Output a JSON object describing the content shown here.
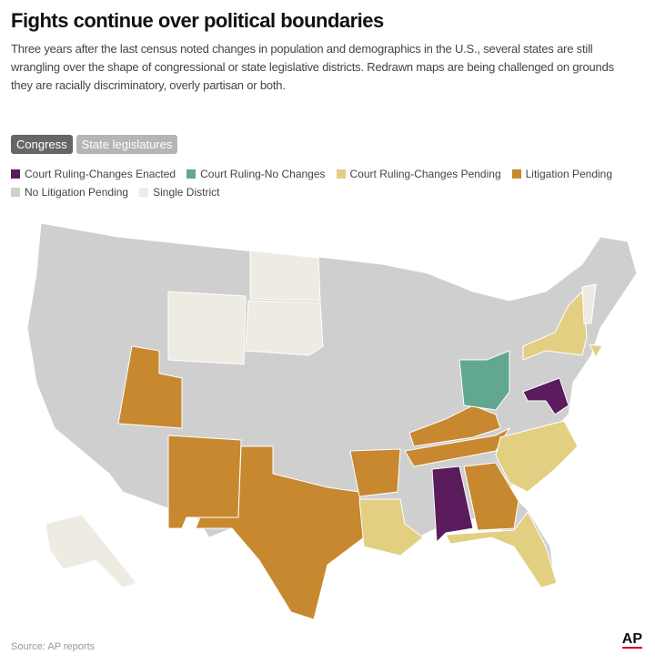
{
  "header": {
    "title": "Fights continue over political boundaries",
    "subtitle": "Three years after the last census noted changes in population and demographics in the U.S., several states are still wrangling over the shape of congressional or state legislative districts. Redrawn maps are being challenged on grounds they are racially discriminatory, overly partisan or both."
  },
  "tabs": [
    "Congress",
    "State legislatures"
  ],
  "legend": [
    {
      "label": "Court Ruling-Changes Enacted",
      "color": "#5a1c5c"
    },
    {
      "label": "Court Ruling-No Changes",
      "color": "#62a792"
    },
    {
      "label": "Court Ruling-Changes Pending",
      "color": "#e3cf82"
    },
    {
      "label": "Litigation Pending",
      "color": "#c8882f"
    },
    {
      "label": "No Litigation Pending",
      "color": "#cfcfcf"
    },
    {
      "label": "Single District",
      "color": "#eeebe3"
    }
  ],
  "footer": {
    "source": "Source: AP reports",
    "logo": "AP"
  }
}
